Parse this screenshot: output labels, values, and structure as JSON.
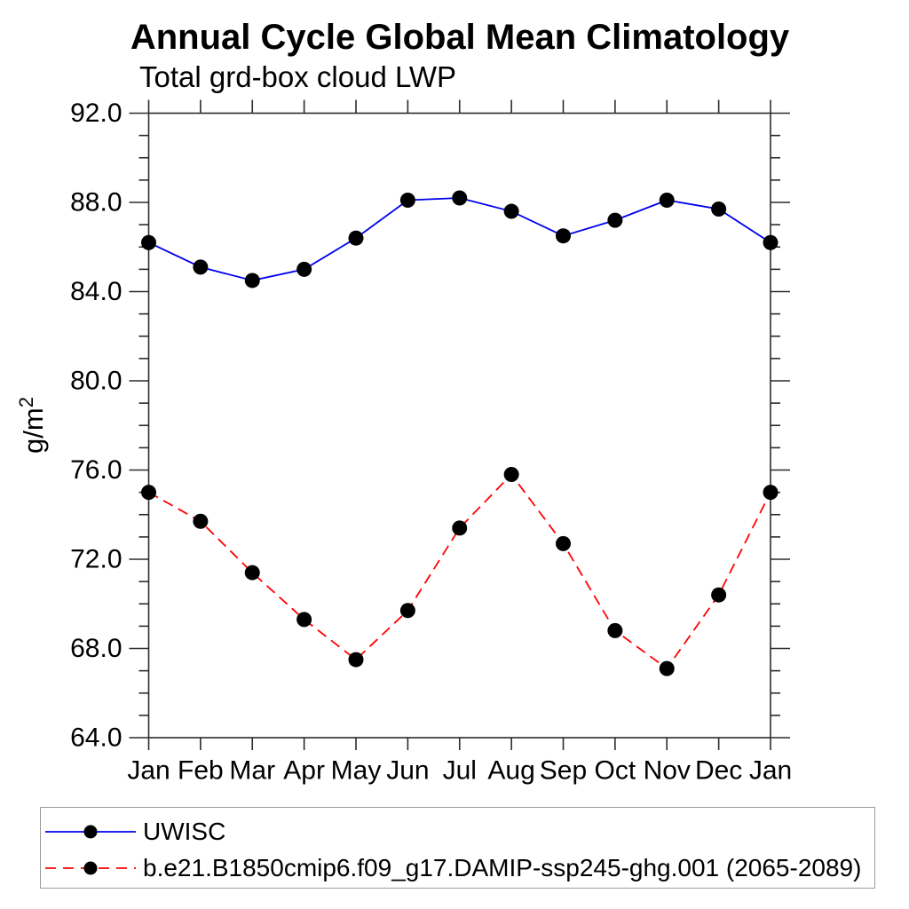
{
  "title": "Annual Cycle Global Mean Climatology",
  "subtitle": "Total grd-box cloud LWP",
  "chart_data": {
    "type": "line",
    "x_categories": [
      "Jan",
      "Feb",
      "Mar",
      "Apr",
      "May",
      "Jun",
      "Jul",
      "Aug",
      "Sep",
      "Oct",
      "Nov",
      "Dec",
      "Jan"
    ],
    "ylabel": "g/m",
    "ylabel_superscript": "2",
    "ylim": [
      64.0,
      92.0
    ],
    "ytick_values": [
      64,
      68,
      72,
      76,
      80,
      84,
      88,
      92
    ],
    "ytick_labels": [
      "64.0",
      "68.0",
      "72.0",
      "76.0",
      "80.0",
      "84.0",
      "88.0",
      "92.0"
    ],
    "ytick_minor_step": 1,
    "grid": false,
    "legend_position": "bottom",
    "marker": {
      "shape": "circle",
      "color": "#000000"
    },
    "series": [
      {
        "name": "UWISC",
        "id": "uwisc",
        "color": "#0000ee",
        "line_style": "solid",
        "values": [
          86.2,
          85.1,
          84.5,
          85.0,
          86.4,
          88.1,
          88.2,
          87.6,
          86.5,
          87.2,
          88.1,
          87.7,
          86.2
        ]
      },
      {
        "name": "b.e21.B1850cmip6.f09_g17.DAMIP-ssp245-ghg.001 (2065-2089)",
        "id": "model",
        "color": "#ff0000",
        "line_style": "dashed",
        "values": [
          75.0,
          73.7,
          71.4,
          69.3,
          67.5,
          69.7,
          73.4,
          75.8,
          72.7,
          68.8,
          67.1,
          70.4,
          75.0
        ]
      }
    ]
  }
}
